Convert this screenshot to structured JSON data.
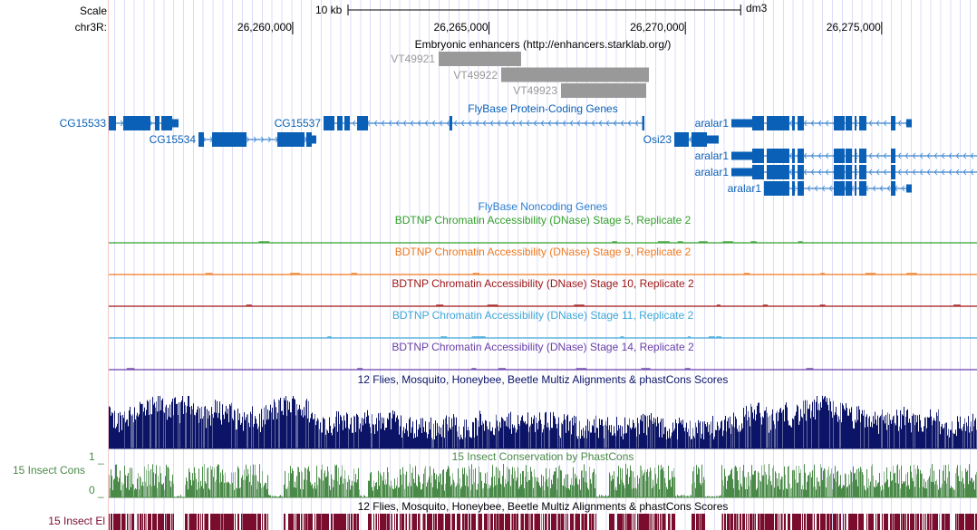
{
  "ruler": {
    "scale_label": "Scale",
    "scale_bar_label": "10 kb",
    "assembly": "dm3",
    "chrom_label": "chr3R:",
    "view_start": 26255316,
    "view_end": 26277427,
    "scale_bar_bp": 10000,
    "ticks": [
      {
        "pos": 26260000,
        "label": "26,260,000"
      },
      {
        "pos": 26265000,
        "label": "26,265,000"
      },
      {
        "pos": 26270000,
        "label": "26,270,000"
      },
      {
        "pos": 26275000,
        "label": "26,275,000"
      }
    ]
  },
  "tracks": {
    "enhancers": {
      "title": "Embryonic enhancers (http://enhancers.starklab.org/)",
      "color": "#999999",
      "items": [
        {
          "name": "VT49921",
          "start": 26263717,
          "end": 26265817
        },
        {
          "name": "VT49922",
          "start": 26265310,
          "end": 26269072
        },
        {
          "name": "VT49923",
          "start": 26266833,
          "end": 26269002
        }
      ]
    },
    "protein_coding": {
      "title": "FlyBase Protein-Coding Genes",
      "color": "#0a60b6",
      "genes": [
        {
          "name": "CG15533",
          "row": 0,
          "strand": "+",
          "start": 26255316,
          "end": 26257093,
          "exons": [
            [
              26255316,
              26255501,
              1
            ],
            [
              26255685,
              26256378,
              1
            ],
            [
              26256493,
              26256608,
              1
            ],
            [
              26256655,
              26256932,
              1
            ],
            [
              26256932,
              26257093,
              0
            ]
          ]
        },
        {
          "name": "CG15534",
          "row": 1,
          "strand": "+",
          "start": 26257601,
          "end": 26260601,
          "exons": [
            [
              26257601,
              26257739,
              1
            ],
            [
              26257947,
              26258824,
              1
            ],
            [
              26259609,
              26260301,
              1
            ],
            [
              26260347,
              26260486,
              1
            ],
            [
              26260486,
              26260601,
              0
            ]
          ]
        },
        {
          "name": "CG15537",
          "row": 0,
          "strand": "-",
          "start": 26260786,
          "end": 26268933,
          "exons": [
            [
              26260786,
              26261063,
              1
            ],
            [
              26261132,
              26261270,
              1
            ],
            [
              26261316,
              26261455,
              1
            ],
            [
              26261640,
              26261917,
              1
            ],
            [
              26263994,
              26264063,
              1
            ],
            [
              26268900,
              26268933,
              1
            ]
          ]
        },
        {
          "name": "Osi23",
          "row": 1,
          "strand": "-",
          "start": 26269718,
          "end": 26270849,
          "exons": [
            [
              26269718,
              26270087,
              1
            ],
            [
              26270156,
              26270549,
              1
            ],
            [
              26270549,
              26270849,
              0
            ]
          ]
        },
        {
          "name": "aralar1",
          "row": 0,
          "strand": "-",
          "start": 26271172,
          "end": 26275765,
          "exons": [
            [
              26271172,
              26271703,
              0
            ],
            [
              26271703,
              26272003,
              1
            ],
            [
              26272072,
              26272649,
              1
            ],
            [
              26272718,
              26272787,
              1
            ],
            [
              26272857,
              26273018,
              1
            ],
            [
              26273780,
              26274057,
              1
            ],
            [
              26274080,
              26274242,
              1
            ],
            [
              26274311,
              26274357,
              1
            ],
            [
              26274426,
              26274611,
              1
            ],
            [
              26275234,
              26275350,
              1
            ],
            [
              26275626,
              26275765,
              0
            ]
          ]
        },
        {
          "name": "aralar1",
          "row": 2,
          "strand": "-",
          "start": 26271172,
          "end": 26277427,
          "exons": [
            [
              26271172,
              26271703,
              0
            ],
            [
              26271703,
              26272003,
              1
            ],
            [
              26272072,
              26272649,
              1
            ],
            [
              26272718,
              26272787,
              1
            ],
            [
              26272857,
              26273018,
              1
            ],
            [
              26273780,
              26274057,
              1
            ],
            [
              26274080,
              26274242,
              1
            ],
            [
              26274311,
              26274357,
              1
            ],
            [
              26274426,
              26274611,
              1
            ],
            [
              26275234,
              26275350,
              1
            ]
          ]
        },
        {
          "name": "aralar1",
          "row": 3,
          "strand": "-",
          "start": 26271172,
          "end": 26277427,
          "exons": [
            [
              26271172,
              26271703,
              0
            ],
            [
              26271703,
              26272003,
              1
            ],
            [
              26272072,
              26272649,
              1
            ],
            [
              26272718,
              26272787,
              1
            ],
            [
              26272857,
              26273018,
              1
            ],
            [
              26273780,
              26274057,
              1
            ],
            [
              26274080,
              26274242,
              1
            ],
            [
              26274311,
              26274357,
              1
            ],
            [
              26274426,
              26274611,
              1
            ],
            [
              26275234,
              26275350,
              1
            ]
          ]
        },
        {
          "name": "aralar1",
          "row": 4,
          "strand": "-",
          "start": 26272003,
          "end": 26275765,
          "exons": [
            [
              26272003,
              26272649,
              1
            ],
            [
              26272718,
              26272787,
              1
            ],
            [
              26272857,
              26273018,
              1
            ],
            [
              26273780,
              26274057,
              1
            ],
            [
              26274080,
              26274242,
              1
            ],
            [
              26274311,
              26274357,
              1
            ],
            [
              26274426,
              26274611,
              1
            ],
            [
              26275234,
              26275350,
              1
            ],
            [
              26275626,
              26275765,
              0
            ]
          ]
        }
      ]
    },
    "noncoding": {
      "title": "FlyBase Noncoding Genes",
      "color": "#2a7fd0"
    },
    "dnase": [
      {
        "title": "BDTNP Chromatin Accessibility (DNase) Stage 5, Replicate 2",
        "color": "#33a02c"
      },
      {
        "title": "BDTNP Chromatin Accessibility (DNase) Stage 9, Replicate 2",
        "color": "#f07a20"
      },
      {
        "title": "BDTNP Chromatin Accessibility (DNase) Stage 10, Replicate 2",
        "color": "#a01818"
      },
      {
        "title": "BDTNP Chromatin Accessibility (DNase) Stage 11, Replicate 2",
        "color": "#40a8d8"
      },
      {
        "title": "BDTNP Chromatin Accessibility (DNase) Stage 14, Replicate 2",
        "color": "#6a3fa8"
      }
    ],
    "multiz": {
      "title": "12 Flies, Mosquito, Honeybee, Beetle Multiz Alignments & phastCons Scores",
      "color": "#0b1466"
    },
    "phastcons": {
      "title": "15 Insect Conservation by PhastCons",
      "side_label": "15 Insect Cons",
      "y_max_label": "1",
      "y_min_label": "0",
      "color": "#4a8a48"
    },
    "elements": {
      "title": "12 Flies, Mosquito, Honeybee, Beetle Multiz Alignments & phastCons Scores",
      "side_label": "15 Insect El",
      "color": "#7a0c2e"
    }
  }
}
